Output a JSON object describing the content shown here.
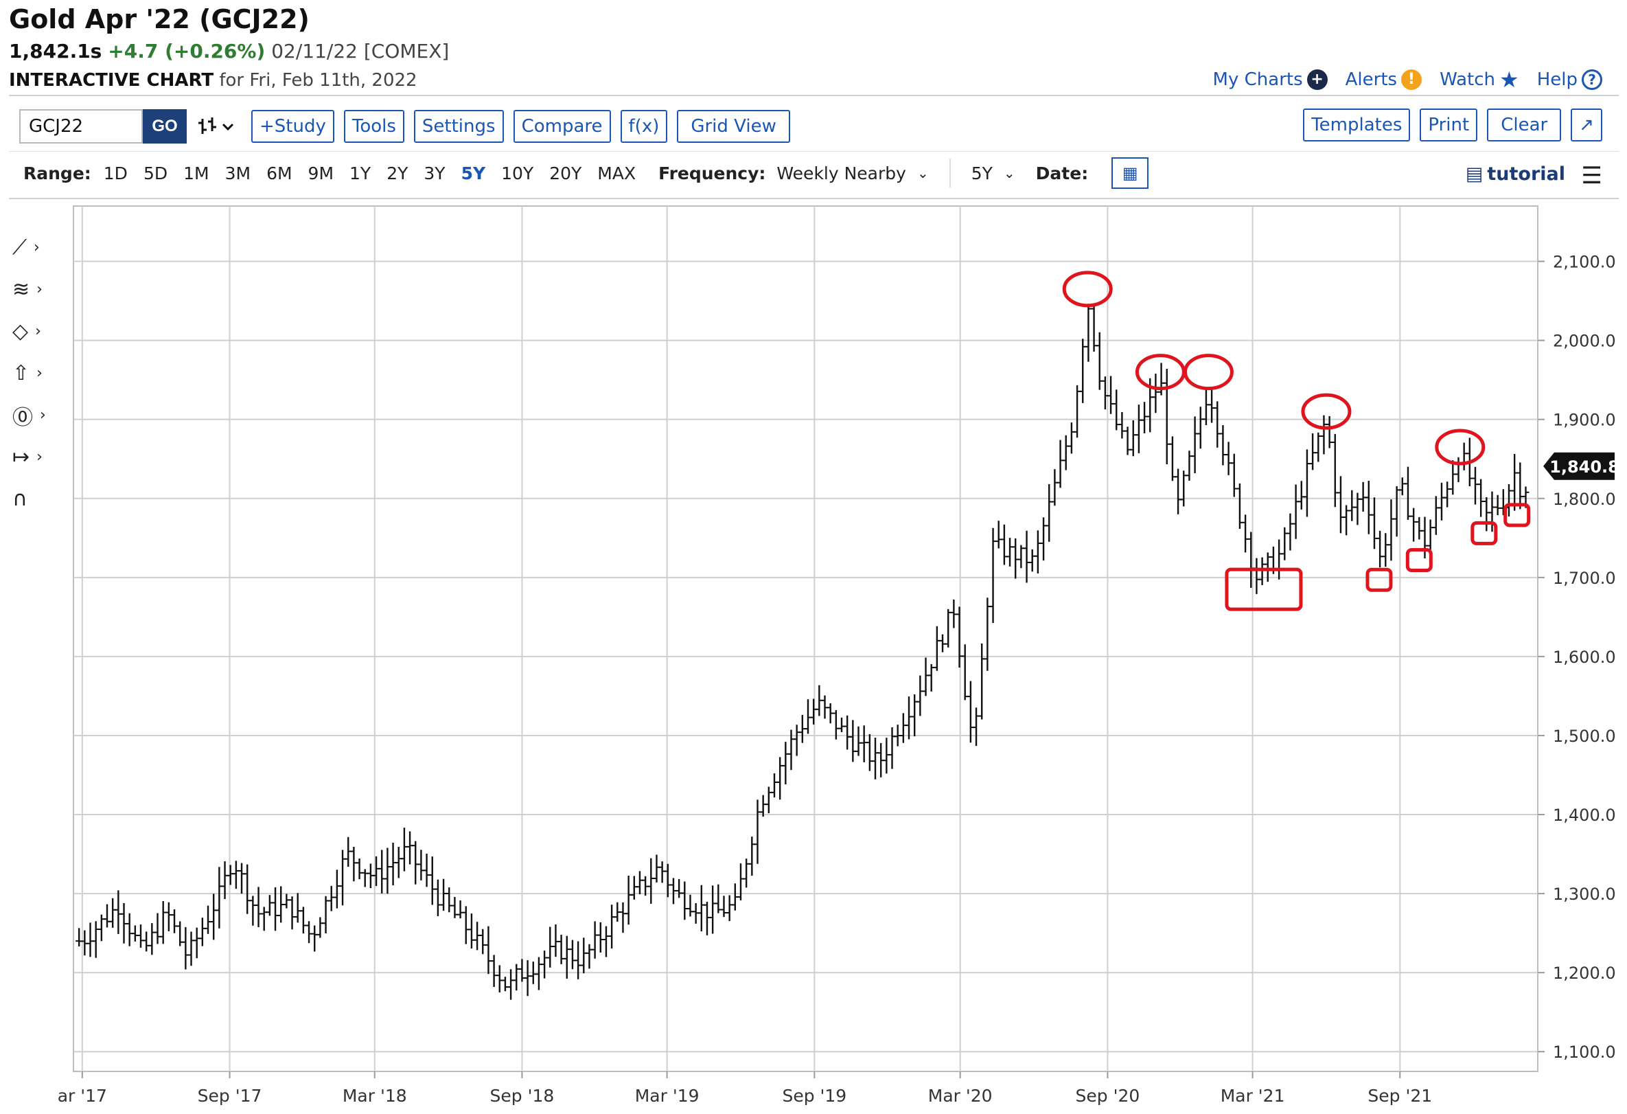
{
  "header": {
    "title": "Gold Apr '22 (GCJ22)",
    "last": "1,842.1s",
    "change": "+4.7 (+0.26%)",
    "date_exchange": "02/11/22 [COMEX]",
    "subtitle_bold": "INTERACTIVE CHART",
    "subtitle_rest": "for Fri, Feb 11th, 2022"
  },
  "top_links": {
    "my_charts": "My Charts",
    "alerts": "Alerts",
    "watch": "Watch",
    "help": "Help"
  },
  "toolbar": {
    "symbol_value": "GCJ22",
    "go_label": "GO",
    "study_label": "+Study",
    "tools_label": "Tools",
    "settings_label": "Settings",
    "compare_label": "Compare",
    "fx_label": "f(x)",
    "grid_view_label": "Grid View",
    "templates_label": "Templates",
    "print_label": "Print",
    "clear_label": "Clear"
  },
  "range_bar": {
    "label": "Range:",
    "options": [
      "1D",
      "5D",
      "1M",
      "3M",
      "6M",
      "9M",
      "1Y",
      "2Y",
      "3Y",
      "5Y",
      "10Y",
      "20Y",
      "MAX"
    ],
    "active": "5Y",
    "frequency_label": "Frequency:",
    "frequency_value": "Weekly Nearby",
    "period_value": "5Y",
    "date_label": "Date:",
    "tutorial_label": "tutorial"
  },
  "colors": {
    "link_blue": "#1b56b5",
    "positive_green": "#2e7d32",
    "annotation_red": "#e0141c",
    "bar_color": "#111111",
    "grid": "#cfcfcf"
  },
  "chart_data": {
    "type": "ohlc",
    "frequency": "weekly",
    "x_tick_labels": [
      "ar '17",
      "Sep '17",
      "Mar '18",
      "Sep '18",
      "Mar '19",
      "Sep '19",
      "Mar '20",
      "Sep '20",
      "Mar '21",
      "Sep '21"
    ],
    "y_tick_labels": [
      "2,100.0",
      "2,000.0",
      "1,900.0",
      "1,800.0",
      "1,700.0",
      "1,600.0",
      "1,500.0",
      "1,400.0",
      "1,300.0",
      "1,200.0",
      "1,100.0"
    ],
    "ylim": [
      1075,
      2170
    ],
    "last_price_label": "1,840.8",
    "last_price": 1840.8,
    "anchors": [
      {
        "date": "2017-03-01",
        "close": 1240
      },
      {
        "date": "2017-04-15",
        "close": 1285
      },
      {
        "date": "2017-05-15",
        "close": 1225
      },
      {
        "date": "2017-06-15",
        "close": 1275
      },
      {
        "date": "2017-07-10",
        "close": 1220
      },
      {
        "date": "2017-08-20",
        "close": 1300
      },
      {
        "date": "2017-09-05",
        "close": 1345
      },
      {
        "date": "2017-10-05",
        "close": 1275
      },
      {
        "date": "2017-11-15",
        "close": 1285
      },
      {
        "date": "2017-12-12",
        "close": 1245
      },
      {
        "date": "2018-01-25",
        "close": 1350
      },
      {
        "date": "2018-03-01",
        "close": 1320
      },
      {
        "date": "2018-04-10",
        "close": 1355
      },
      {
        "date": "2018-05-20",
        "close": 1295
      },
      {
        "date": "2018-06-25",
        "close": 1255
      },
      {
        "date": "2018-08-15",
        "close": 1180
      },
      {
        "date": "2018-08-25",
        "close": 1195
      },
      {
        "date": "2018-10-15",
        "close": 1230
      },
      {
        "date": "2018-11-15",
        "close": 1215
      },
      {
        "date": "2019-01-10",
        "close": 1290
      },
      {
        "date": "2019-02-20",
        "close": 1335
      },
      {
        "date": "2019-03-10",
        "close": 1300
      },
      {
        "date": "2019-04-25",
        "close": 1275
      },
      {
        "date": "2019-05-25",
        "close": 1285
      },
      {
        "date": "2019-06-25",
        "close": 1415
      },
      {
        "date": "2019-08-10",
        "close": 1505
      },
      {
        "date": "2019-09-05",
        "close": 1540
      },
      {
        "date": "2019-10-15",
        "close": 1495
      },
      {
        "date": "2019-11-20",
        "close": 1465
      },
      {
        "date": "2020-01-10",
        "close": 1560
      },
      {
        "date": "2020-02-22",
        "close": 1660
      },
      {
        "date": "2020-03-18",
        "close": 1480
      },
      {
        "date": "2020-04-10",
        "close": 1740
      },
      {
        "date": "2020-06-01",
        "close": 1720
      },
      {
        "date": "2020-07-20",
        "close": 1900
      },
      {
        "date": "2020-08-07",
        "close": 2050
      },
      {
        "date": "2020-08-25",
        "close": 1940
      },
      {
        "date": "2020-09-25",
        "close": 1860
      },
      {
        "date": "2020-11-06",
        "close": 1950
      },
      {
        "date": "2020-11-25",
        "close": 1780
      },
      {
        "date": "2021-01-05",
        "close": 1940
      },
      {
        "date": "2021-02-05",
        "close": 1810
      },
      {
        "date": "2021-03-05",
        "close": 1700
      },
      {
        "date": "2021-04-05",
        "close": 1730
      },
      {
        "date": "2021-05-10",
        "close": 1840
      },
      {
        "date": "2021-06-01",
        "close": 1900
      },
      {
        "date": "2021-06-18",
        "close": 1770
      },
      {
        "date": "2021-07-20",
        "close": 1810
      },
      {
        "date": "2021-08-06",
        "close": 1720
      },
      {
        "date": "2021-09-01",
        "close": 1815
      },
      {
        "date": "2021-09-30",
        "close": 1740
      },
      {
        "date": "2021-11-15",
        "close": 1860
      },
      {
        "date": "2021-12-15",
        "close": 1775
      },
      {
        "date": "2022-01-10",
        "close": 1800
      },
      {
        "date": "2022-01-25",
        "close": 1840
      },
      {
        "date": "2022-02-01",
        "close": 1795
      },
      {
        "date": "2022-02-11",
        "close": 1842
      }
    ],
    "annotations": [
      {
        "shape": "ellipse",
        "date": "2020-08-07",
        "price": 2065
      },
      {
        "shape": "ellipse",
        "date": "2020-11-06",
        "price": 1960
      },
      {
        "shape": "ellipse",
        "date": "2021-01-05",
        "price": 1960
      },
      {
        "shape": "ellipse",
        "date": "2021-06-01",
        "price": 1910
      },
      {
        "shape": "ellipse",
        "date": "2021-11-15",
        "price": 1865
      },
      {
        "shape": "rect",
        "date": "2021-03-15",
        "price": 1685
      },
      {
        "shape": "rect",
        "date": "2021-08-06",
        "price": 1697
      },
      {
        "shape": "rect",
        "date": "2021-09-25",
        "price": 1722
      },
      {
        "shape": "rect",
        "date": "2021-12-15",
        "price": 1756
      },
      {
        "shape": "rect",
        "date": "2022-01-25",
        "price": 1779
      }
    ]
  }
}
